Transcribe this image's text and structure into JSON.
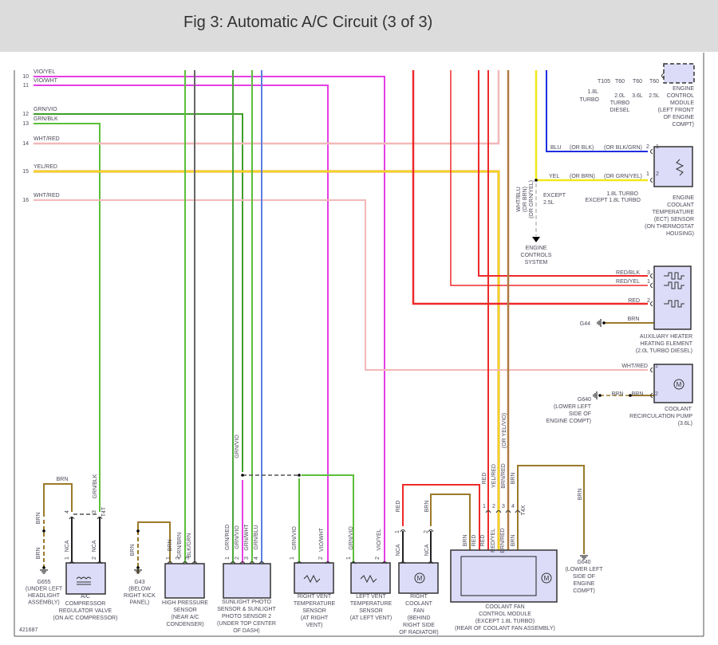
{
  "title": "Fig 3: Automatic A/C Circuit (3 of 3)",
  "figure_number": "421687",
  "wire_colors": {
    "vio": "#e53ee5",
    "grn": "#5cbf3a",
    "pink": "#f2b8b8",
    "yel": "#f2e81c",
    "red": "#ee2a2a",
    "brn": "#9b7a2a",
    "blu": "#1e2ee0",
    "blk": "#222222",
    "gry": "#555555",
    "box": "#dcdcf8"
  },
  "rows": [
    {
      "num": "10",
      "wire": "VIO/YEL"
    },
    {
      "num": "11",
      "wire": "VIO/WHT"
    },
    {
      "num": "12",
      "wire": "GRN/VIO"
    },
    {
      "num": "13",
      "wire": "GRN/BLK"
    },
    {
      "num": "14",
      "wire": "WHT/RED"
    },
    {
      "num": "15",
      "wire": "YEL/RED"
    },
    {
      "num": "16",
      "wire": "WHT/RED"
    }
  ],
  "ecm": {
    "terminals": [
      "T105",
      "T60",
      "T60",
      "T60"
    ],
    "variants": [
      "1.8L",
      "TURBO",
      "2.0L",
      "TURBO",
      "DIESEL",
      "3.6L",
      "2.5L"
    ],
    "lines": [
      "ENGINE",
      "CONTROL",
      "MODULE",
      "(LEFT FRONT",
      "OF ENGINE",
      "COMPT)"
    ]
  },
  "ect": {
    "blu_wire": [
      "BLU",
      "(OR BLK)",
      "(OR BLK/GRN)",
      "2",
      "1"
    ],
    "yel_wire": [
      "YEL",
      "(OR BRN)",
      "(OR GRN/YEL)",
      "1",
      "2"
    ],
    "notes": [
      "1.8L TURBO",
      "EXCEPT 1.8L TURBO",
      "EXCEPT",
      "2.5L"
    ],
    "lines": [
      "ENGINE",
      "COOLANT",
      "TEMPERATURE",
      "(ECT) SENSOR",
      "(ON THERMOSTAT",
      "HOUSING)"
    ]
  },
  "engine_controls": {
    "wire": [
      "WHT/BLU",
      "(OR BRN)",
      "(OR GRN/YEL)"
    ],
    "lines": [
      "ENGINE",
      "CONTROLS",
      "SYSTEM"
    ]
  },
  "aux_heater": {
    "wires": [
      "RED/BLK",
      "3",
      "RED/YEL",
      "1",
      "RED",
      "2"
    ],
    "ground": "G44",
    "ground_wire": "BRN",
    "lines": [
      "AUXILIARY HEATER",
      "HEATING ELEMENT",
      "(2.0L TURBO DIESEL)"
    ]
  },
  "pump": {
    "wires": [
      "WHT/RED",
      "1",
      "BRN",
      "BRN",
      "2"
    ],
    "ground_lines": [
      "G640",
      "(LOWER LEFT",
      "SIDE OF",
      "ENGINE COMPT)"
    ],
    "lines": [
      "COOLANT",
      "RECIRCULATION PUMP",
      "(3.6L)"
    ]
  },
  "fan_module": {
    "upper_wires": [
      "RED",
      "YEL/RED",
      "BRN/RED",
      "BRN"
    ],
    "alt_wire": "(OR YEL/VIO)",
    "pins": [
      "1",
      "2",
      "3",
      "4"
    ],
    "connector": "T4X",
    "lower_wires": [
      "BRN",
      "RED",
      "RED",
      "RED/YEL",
      "BRN/RED",
      "BRN"
    ],
    "lines": [
      "COOLANT FAN",
      "CONTROL MODULE",
      "(EXCEPT 1.8L TURBO)",
      "(REAR OF COOLANT FAN ASSEMBLY)"
    ]
  },
  "ground_g640": {
    "wire": "BRN",
    "lines": [
      "G640",
      "(LOWER LEFT",
      "SIDE OF",
      "ENGINE",
      "COMPT)"
    ]
  },
  "right_fan": {
    "wires": [
      "RED",
      "BRN",
      "1",
      "2",
      "NCA",
      "NCA"
    ],
    "lines": [
      "RIGHT",
      "COOLANT",
      "FAN",
      "(BEHIND",
      "RIGHT SIDE",
      "OF RADIATOR)"
    ]
  },
  "left_vent": {
    "wires": [
      "GRN/VIO",
      "VIO/YEL",
      "1",
      "2"
    ],
    "lines": [
      "LEFT VENT",
      "TEMPERATURE",
      "SENSOR",
      "(AT LEFT VENT)"
    ]
  },
  "right_vent": {
    "wires": [
      "GRN/VIO",
      "VIO/WHT",
      "1",
      "2"
    ],
    "lines": [
      "RIGHT VENT",
      "TEMPERATURE",
      "SENSOR",
      "(AT RIGHT",
      "VENT)"
    ]
  },
  "sunlight": {
    "wires": [
      "GRN/RED",
      "GRN/VIO",
      "GRN/WHT",
      "GRN/BLU",
      "1",
      "2",
      "3",
      "4"
    ],
    "splice_wire": "GRN/VIO",
    "lines": [
      "SUNLIGHT PHOTO",
      "SENSOR & SUNLIGHT",
      "PHOTO SENSOR 2",
      "(UNDER TOP CENTER",
      "OF DASH)"
    ]
  },
  "high_pressure": {
    "wires": [
      "BRN",
      "GRN/BRN",
      "BLK/GRN",
      "1",
      "2",
      "3"
    ],
    "lines": [
      "HIGH PRESSURE",
      "SENSOR",
      "(NEAR A/C",
      "CONDENSER)"
    ]
  },
  "g43": {
    "wire": "BRN",
    "lines": [
      "G43",
      "(BELOW",
      "RIGHT KICK",
      "PANEL)"
    ]
  },
  "ac_valve": {
    "wires": [
      "BRN",
      "GRN/BLK",
      "T4T",
      "4",
      "3",
      "NCA",
      "NCA",
      "1",
      "2"
    ],
    "lines": [
      "A/C",
      "COMPRESSOR",
      "REGULATOR VALVE",
      "(ON A/C COMPRESSOR)"
    ]
  },
  "g655": {
    "wires": [
      "BRN",
      "BRN"
    ],
    "lines": [
      "G655",
      "(UNDER LEFT",
      "HEADLIGHT",
      "ASSEMBLY)"
    ]
  }
}
